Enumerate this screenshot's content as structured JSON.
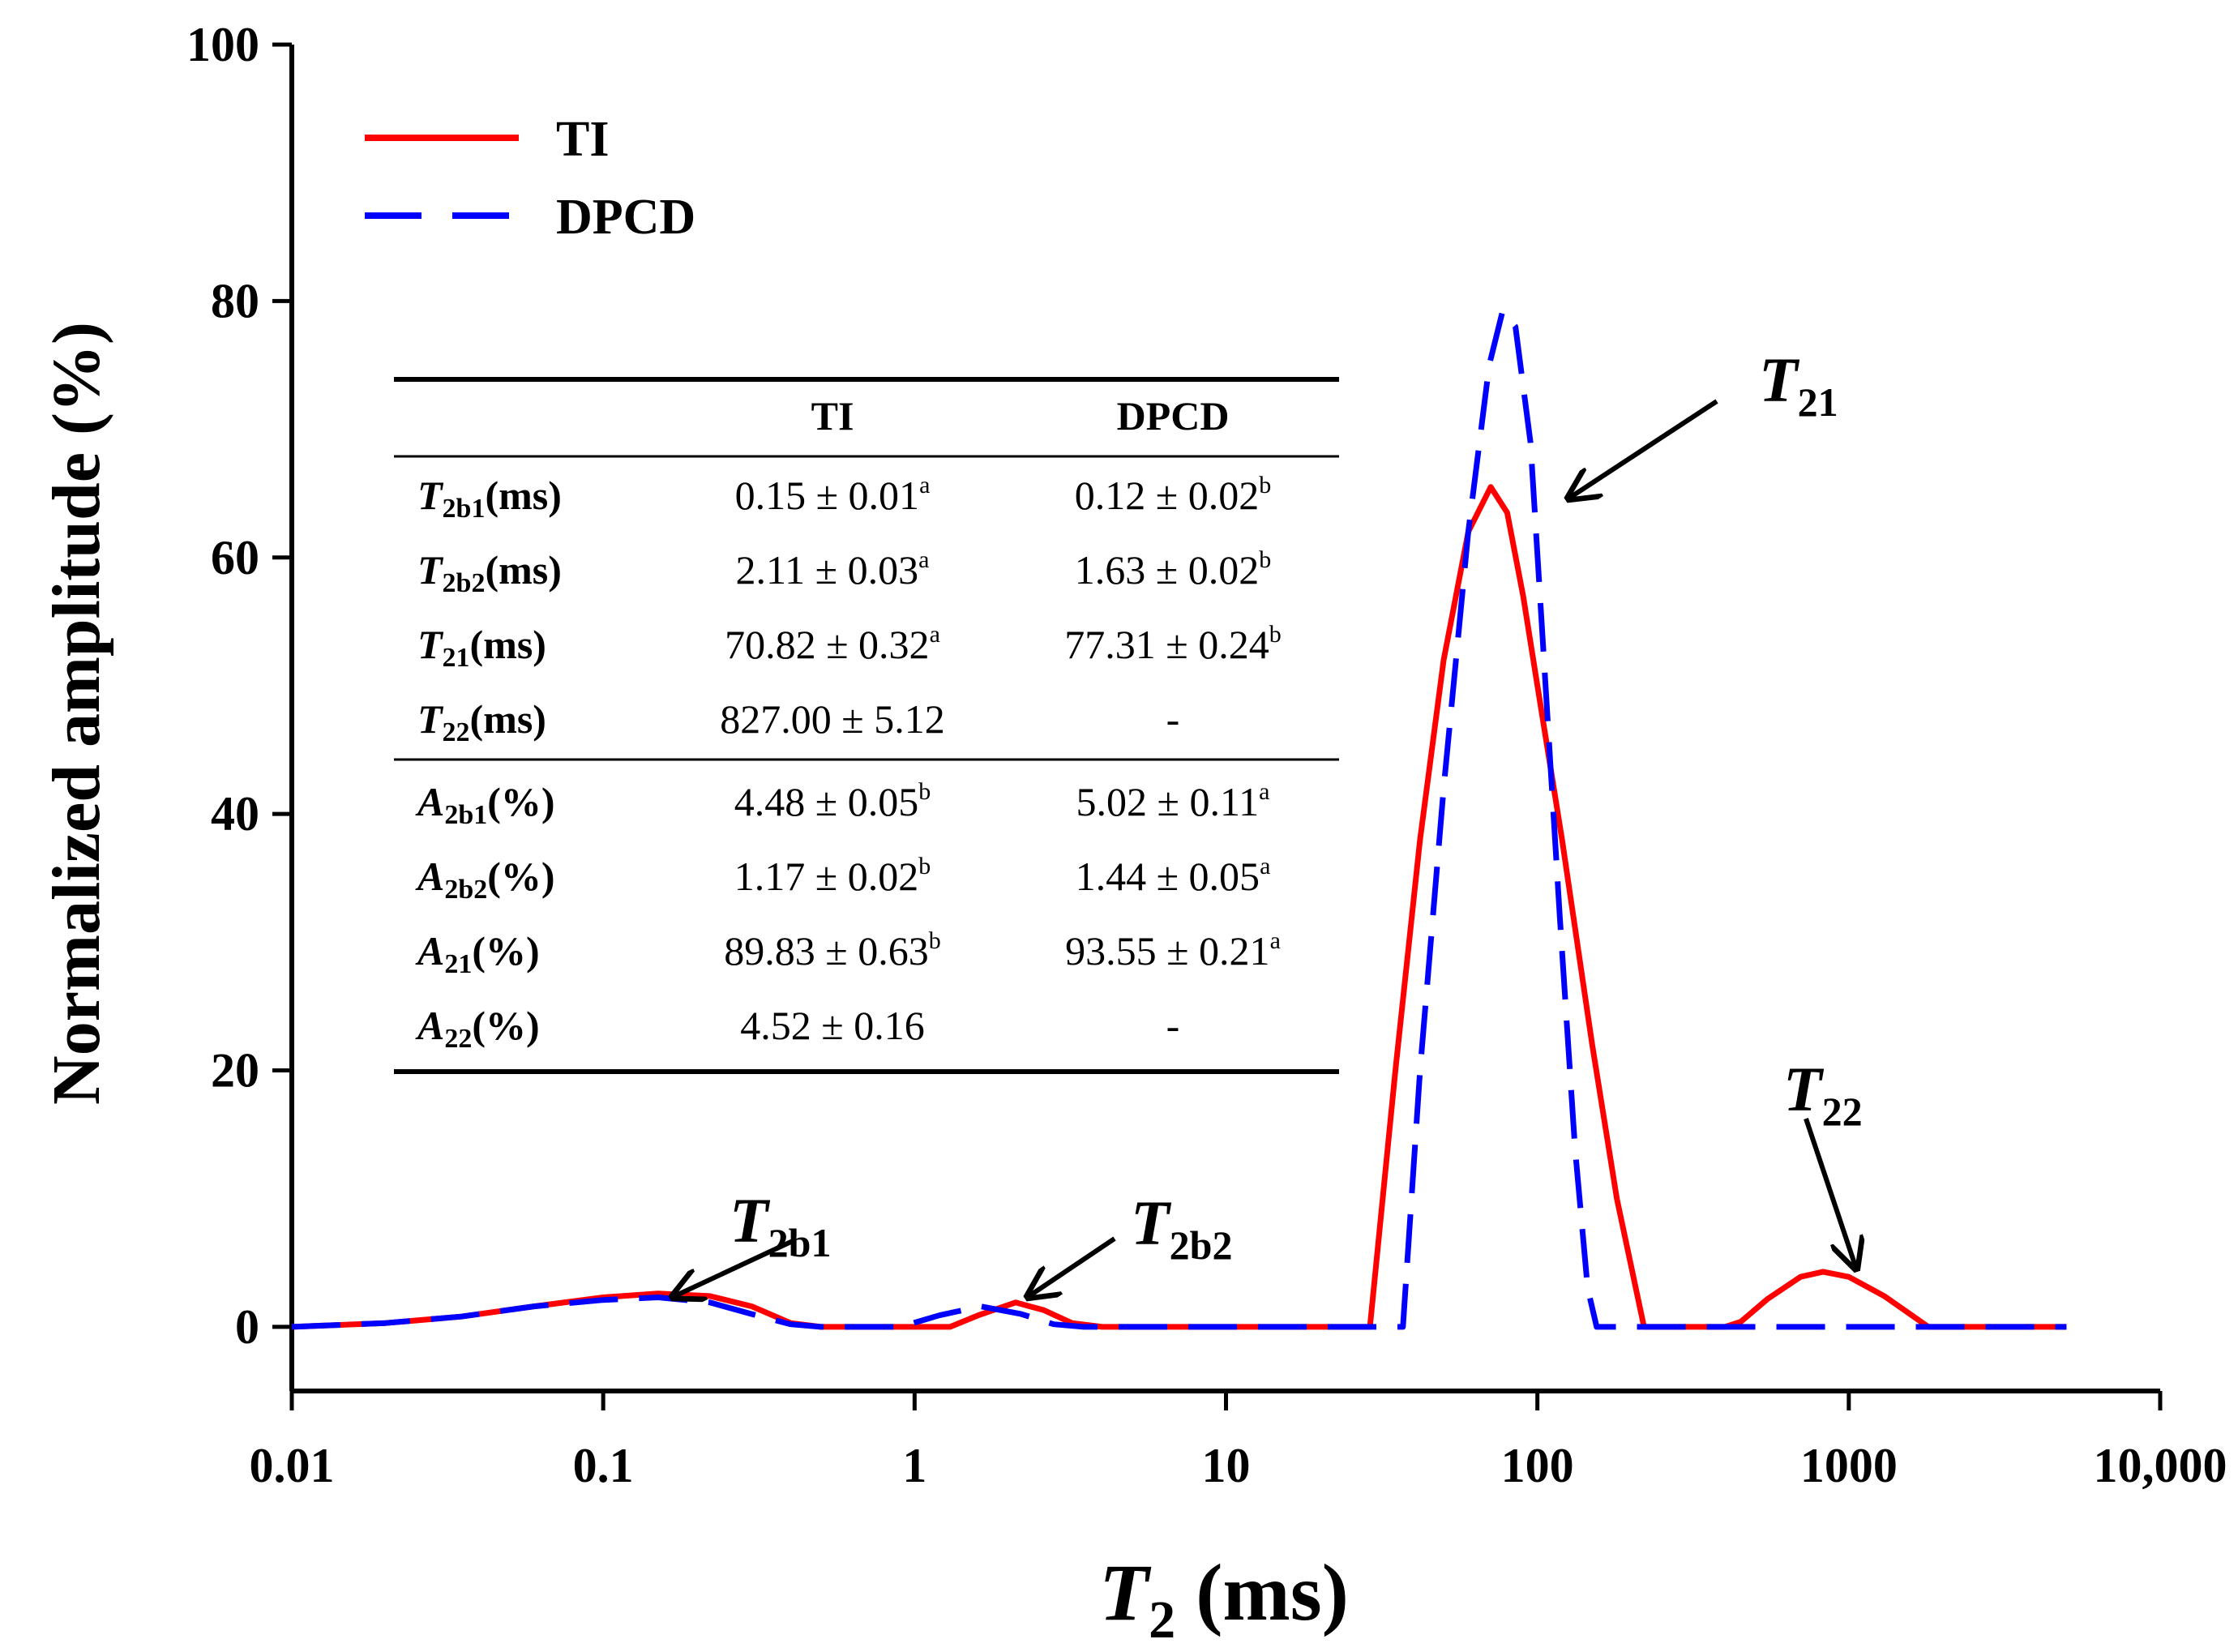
{
  "chart_data": {
    "type": "line",
    "xscale": "log",
    "xlim": [
      0.01,
      10000
    ],
    "ylim": [
      -5,
      100
    ],
    "x_ticks": [
      0.01,
      0.1,
      1,
      10,
      100,
      1000,
      10000
    ],
    "x_tick_labels": [
      "0.01",
      "0.1",
      "1",
      "10",
      "100",
      "1000",
      "10,000"
    ],
    "y_ticks": [
      0,
      20,
      40,
      60,
      80,
      100
    ],
    "y_tick_labels": [
      "0",
      "20",
      "40",
      "60",
      "80",
      "100"
    ],
    "xlabel": {
      "main": "T",
      "sub": "2",
      "rest": " (ms)"
    },
    "ylabel": "Normalized amplitude (%)",
    "legend_position": "top-left",
    "series": [
      {
        "name": "TI",
        "color": "#ff0000",
        "dash": "solid",
        "points": [
          [
            0.01,
            0
          ],
          [
            0.02,
            0.3
          ],
          [
            0.035,
            0.8
          ],
          [
            0.06,
            1.6
          ],
          [
            0.1,
            2.3
          ],
          [
            0.15,
            2.6
          ],
          [
            0.22,
            2.4
          ],
          [
            0.3,
            1.6
          ],
          [
            0.4,
            0.3
          ],
          [
            0.5,
            0
          ],
          [
            1,
            0
          ],
          [
            1.3,
            0
          ],
          [
            1.6,
            0.9
          ],
          [
            2.11,
            1.9
          ],
          [
            2.6,
            1.3
          ],
          [
            3.2,
            0.3
          ],
          [
            4,
            0
          ],
          [
            10,
            0
          ],
          [
            29,
            0
          ],
          [
            35,
            20
          ],
          [
            42,
            38
          ],
          [
            50,
            52
          ],
          [
            60,
            62
          ],
          [
            70.8,
            65.5
          ],
          [
            80,
            63.5
          ],
          [
            90,
            57
          ],
          [
            100,
            50
          ],
          [
            120,
            38
          ],
          [
            150,
            22
          ],
          [
            180,
            10
          ],
          [
            220,
            0
          ],
          [
            400,
            0
          ],
          [
            450,
            0.4
          ],
          [
            550,
            2.2
          ],
          [
            700,
            3.9
          ],
          [
            827,
            4.3
          ],
          [
            1000,
            3.9
          ],
          [
            1300,
            2.4
          ],
          [
            1800,
            0
          ],
          [
            5000,
            0
          ]
        ]
      },
      {
        "name": "DPCD",
        "color": "#0000ff",
        "dash": "dashed",
        "points": [
          [
            0.01,
            0
          ],
          [
            0.02,
            0.3
          ],
          [
            0.035,
            0.8
          ],
          [
            0.06,
            1.6
          ],
          [
            0.1,
            2.1
          ],
          [
            0.15,
            2.3
          ],
          [
            0.22,
            1.9
          ],
          [
            0.3,
            1.0
          ],
          [
            0.4,
            0.2
          ],
          [
            0.5,
            0
          ],
          [
            0.9,
            0
          ],
          [
            1.2,
            0.9
          ],
          [
            1.63,
            1.6
          ],
          [
            2.2,
            1.0
          ],
          [
            2.8,
            0.2
          ],
          [
            3.5,
            0
          ],
          [
            10,
            0
          ],
          [
            37,
            0
          ],
          [
            42,
            20
          ],
          [
            50,
            42
          ],
          [
            60,
            62
          ],
          [
            70,
            75
          ],
          [
            77.3,
            79.2
          ],
          [
            85,
            78
          ],
          [
            95,
            69
          ],
          [
            105,
            52
          ],
          [
            118,
            32
          ],
          [
            132,
            14
          ],
          [
            145,
            3
          ],
          [
            155,
            0
          ],
          [
            5000,
            0
          ]
        ]
      }
    ],
    "annotations": [
      {
        "label": "T",
        "sub": "2b1",
        "x": 0.15,
        "y": 2.6
      },
      {
        "label": "T",
        "sub": "2b2",
        "x": 2.11,
        "y": 1.9
      },
      {
        "label": "T",
        "sub": "21",
        "x": 120,
        "y": 65
      },
      {
        "label": "T",
        "sub": "22",
        "x": 827,
        "y": 4.3
      }
    ]
  },
  "table": {
    "headers": [
      "",
      "TI",
      "DPCD"
    ],
    "rows": [
      {
        "sym": "T",
        "sub": "2b1",
        "unit": "(ms)",
        "ti": "0.15 ± 0.01",
        "ti_sup": "a",
        "dpcd": "0.12 ± 0.02",
        "dpcd_sup": "b"
      },
      {
        "sym": "T",
        "sub": "2b2",
        "unit": "(ms)",
        "ti": "2.11 ± 0.03",
        "ti_sup": "a",
        "dpcd": "1.63 ± 0.02",
        "dpcd_sup": "b"
      },
      {
        "sym": "T",
        "sub": "21",
        "unit": "(ms)",
        "ti": "70.82 ± 0.32",
        "ti_sup": "a",
        "dpcd": "77.31 ± 0.24",
        "dpcd_sup": "b"
      },
      {
        "sym": "T",
        "sub": "22",
        "unit": "(ms)",
        "ti": "827.00 ± 5.12",
        "ti_sup": "",
        "dpcd": "-",
        "dpcd_sup": ""
      },
      {
        "sym": "A",
        "sub": "2b1",
        "unit": "(%)",
        "ti": "4.48 ± 0.05",
        "ti_sup": "b",
        "dpcd": "5.02 ± 0.11",
        "dpcd_sup": "a"
      },
      {
        "sym": "A",
        "sub": "2b2",
        "unit": "(%)",
        "ti": "1.17 ± 0.02",
        "ti_sup": "b",
        "dpcd": "1.44 ± 0.05",
        "dpcd_sup": "a"
      },
      {
        "sym": "A",
        "sub": "21",
        "unit": "(%)",
        "ti": "89.83 ± 0.63",
        "ti_sup": "b",
        "dpcd": "93.55 ± 0.21",
        "dpcd_sup": "a"
      },
      {
        "sym": "A",
        "sub": "22",
        "unit": "(%)",
        "ti": "4.52 ± 0.16",
        "ti_sup": "",
        "dpcd": "-",
        "dpcd_sup": ""
      }
    ]
  }
}
